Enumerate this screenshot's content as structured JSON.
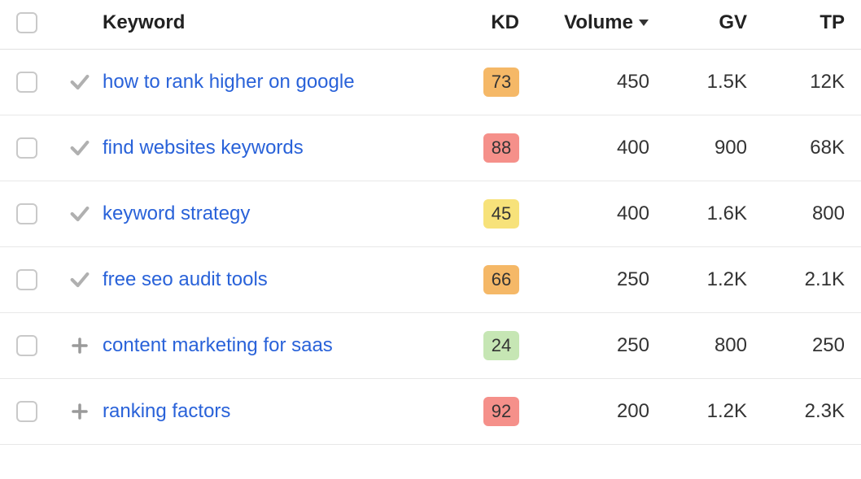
{
  "columns": {
    "keyword": "Keyword",
    "kd": "KD",
    "volume": "Volume",
    "gv": "GV",
    "tp": "TP"
  },
  "sort": {
    "column": "volume",
    "direction": "desc"
  },
  "kd_palette": {
    "green": "#c6e6b4",
    "yellow": "#f7e27a",
    "orange": "#f5b867",
    "red": "#f5908a"
  },
  "icon_colors": {
    "check": "#b0b0b0",
    "plus": "#9a9a9a",
    "caret": "#333333",
    "checkbox_border": "#c9c9c9"
  },
  "link_color": "#2962d9",
  "text_color": "#333333",
  "row_border_color": "#e8e8e8",
  "background_color": "#ffffff",
  "font_family": "-apple-system, BlinkMacSystemFont, Segoe UI, Helvetica, Arial, sans-serif",
  "rows": [
    {
      "status": "check",
      "keyword": "how to rank higher on google",
      "kd": 73,
      "kd_tier": "orange",
      "volume": "450",
      "gv": "1.5K",
      "tp": "12K"
    },
    {
      "status": "check",
      "keyword": "find websites keywords",
      "kd": 88,
      "kd_tier": "red",
      "volume": "400",
      "gv": "900",
      "tp": "68K"
    },
    {
      "status": "check",
      "keyword": "keyword strategy",
      "kd": 45,
      "kd_tier": "yellow",
      "volume": "400",
      "gv": "1.6K",
      "tp": "800"
    },
    {
      "status": "check",
      "keyword": "free seo audit tools",
      "kd": 66,
      "kd_tier": "orange",
      "volume": "250",
      "gv": "1.2K",
      "tp": "2.1K"
    },
    {
      "status": "plus",
      "keyword": "content marketing for saas",
      "kd": 24,
      "kd_tier": "green",
      "volume": "250",
      "gv": "800",
      "tp": "250"
    },
    {
      "status": "plus",
      "keyword": "ranking factors",
      "kd": 92,
      "kd_tier": "red",
      "volume": "200",
      "gv": "1.2K",
      "tp": "2.3K"
    }
  ]
}
